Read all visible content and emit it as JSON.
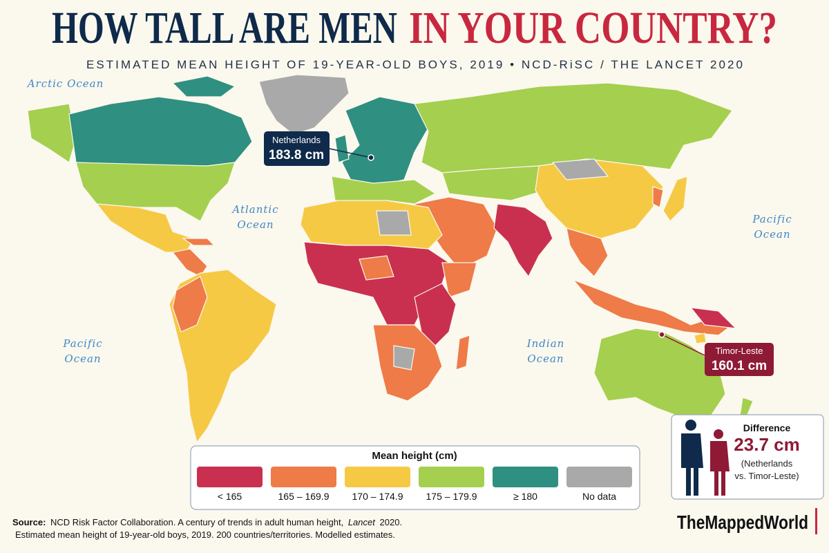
{
  "header": {
    "title_part1": "HOW TALL ARE MEN",
    "title_part2": "IN YOUR COUNTRY?",
    "subtitle": "ESTIMATED MEAN HEIGHT OF 19-YEAR-OLD BOYS, 2019 • NCD-RiSC / THE LANCET 2020"
  },
  "oceans": [
    {
      "lines": [
        "Arctic Ocean"
      ]
    },
    {
      "lines": [
        "Atlantic",
        "Ocean"
      ]
    },
    {
      "lines": [
        "Pacific",
        "Ocean"
      ]
    },
    {
      "lines": [
        "Indian",
        "Ocean"
      ]
    },
    {
      "lines": [
        "Pacific",
        "Ocean"
      ]
    }
  ],
  "callouts": [
    {
      "country": "Netherlands",
      "height": "183.8 cm",
      "color": "#0f2a4a"
    },
    {
      "country": "Timor-Leste",
      "height": "160.1 cm",
      "color": "#8e1a36"
    }
  ],
  "legend": {
    "title": "Mean height (cm)",
    "items": [
      {
        "label": "< 165",
        "color": "#c9304f"
      },
      {
        "label": "165 – 169.9",
        "color": "#ee7b48"
      },
      {
        "label": "170 – 174.9",
        "color": "#f6c945"
      },
      {
        "label": "175 – 179.9",
        "color": "#a5cf4e"
      },
      {
        "label": "≥ 180",
        "color": "#2f8f80"
      },
      {
        "label": "No data",
        "color": "#a9a9a9"
      }
    ]
  },
  "difference": {
    "title": "Difference",
    "value": "23.7 cm",
    "note_line1": "(Netherlands",
    "note_line2": "vs. Timor-Leste)"
  },
  "source": {
    "label": "Source:",
    "text": "NCD Risk Factor Collaboration.  A century of trends in adult human height,",
    "journal": "Lancet",
    "year": "2020.",
    "line2": "Estimated mean height of 19-year-old boys, 2019. 200 countries/territories. Modelled estimates."
  },
  "brand": "TheMappedWorld"
}
